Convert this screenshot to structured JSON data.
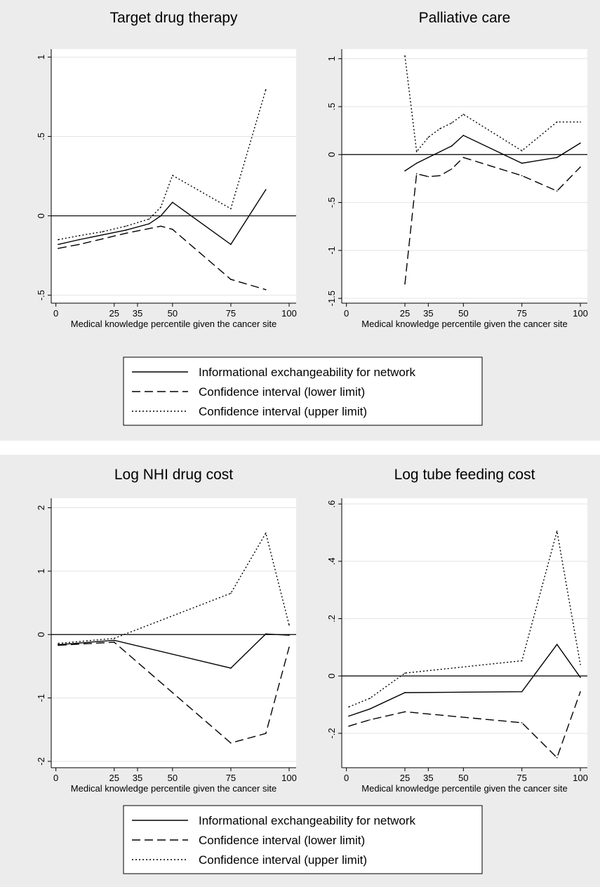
{
  "figures": [
    {
      "legend": {
        "entries": [
          {
            "label": "Informational exchangeability for network",
            "style": "solid"
          },
          {
            "label": "Confidence interval (lower limit)",
            "style": "dashed"
          },
          {
            "label": "Confidence interval (upper limit)",
            "style": "dotted"
          }
        ]
      }
    },
    {
      "legend": {
        "entries": [
          {
            "label": "Informational exchangeability for network",
            "style": "solid"
          },
          {
            "label": "Confidence interval (lower limit)",
            "style": "dashed"
          },
          {
            "label": "Confidence interval (upper limit)",
            "style": "dotted"
          }
        ]
      }
    }
  ],
  "chart_data": [
    {
      "type": "line",
      "title": "Target drug therapy",
      "xlabel": "Medical knowledge percentile given the cancer site",
      "ylabel": "",
      "xlim": [
        -2,
        103
      ],
      "ylim": [
        -0.55,
        1.05
      ],
      "xticks": [
        0,
        25,
        35,
        50,
        75,
        100
      ],
      "yticks": [
        -0.5,
        0,
        0.5,
        1
      ],
      "ytick_labels": [
        "-.5",
        "0",
        ".5",
        "1"
      ],
      "grid": true,
      "reference_line": 0,
      "series": [
        {
          "name": "Informational exchangeability for network",
          "style": "solid",
          "x": [
            1,
            10,
            20,
            30,
            40,
            45,
            50,
            75,
            90
          ],
          "y": [
            -0.18,
            -0.15,
            -0.12,
            -0.09,
            -0.05,
            0.0,
            0.085,
            -0.18,
            0.165
          ]
        },
        {
          "name": "Confidence interval (lower limit)",
          "style": "dashed",
          "x": [
            1,
            10,
            20,
            30,
            40,
            45,
            50,
            75,
            90
          ],
          "y": [
            -0.205,
            -0.18,
            -0.145,
            -0.11,
            -0.08,
            -0.065,
            -0.085,
            -0.4,
            -0.465
          ]
        },
        {
          "name": "Confidence interval (upper limit)",
          "style": "dotted",
          "x": [
            1,
            10,
            20,
            30,
            40,
            45,
            50,
            75,
            90
          ],
          "y": [
            -0.15,
            -0.125,
            -0.1,
            -0.065,
            -0.02,
            0.055,
            0.255,
            0.045,
            0.795
          ]
        }
      ]
    },
    {
      "type": "line",
      "title": "Palliative care",
      "xlabel": "Medical knowledge percentile given the cancer site",
      "ylabel": "",
      "xlim": [
        -2,
        103
      ],
      "ylim": [
        -1.55,
        1.1
      ],
      "xticks": [
        0,
        25,
        35,
        50,
        75,
        100
      ],
      "yticks": [
        -1.5,
        -1,
        -0.5,
        0,
        0.5,
        1
      ],
      "ytick_labels": [
        "-1.5",
        "-1",
        "-.5",
        "0",
        ".5",
        "1"
      ],
      "grid": true,
      "reference_line": 0,
      "series": [
        {
          "name": "Informational exchangeability for network",
          "style": "solid",
          "x": [
            25,
            30,
            35,
            40,
            45,
            50,
            75,
            90,
            100
          ],
          "y": [
            -0.17,
            -0.09,
            -0.03,
            0.03,
            0.09,
            0.2,
            -0.09,
            -0.03,
            0.12
          ]
        },
        {
          "name": "Confidence interval (lower limit)",
          "style": "dashed",
          "x": [
            25,
            30,
            35,
            40,
            45,
            50,
            75,
            90,
            100
          ],
          "y": [
            -1.35,
            -0.2,
            -0.23,
            -0.22,
            -0.15,
            -0.03,
            -0.22,
            -0.38,
            -0.13
          ]
        },
        {
          "name": "Confidence interval (upper limit)",
          "style": "dotted",
          "x": [
            25,
            30,
            35,
            40,
            45,
            50,
            75,
            90,
            100
          ],
          "y": [
            1.03,
            0.03,
            0.18,
            0.27,
            0.33,
            0.42,
            0.04,
            0.34,
            0.34
          ]
        }
      ]
    },
    {
      "type": "line",
      "title": "Log NHI drug cost",
      "xlabel": "Medical knowledge percentile given the cancer site",
      "ylabel": "",
      "xlim": [
        -2,
        103
      ],
      "ylim": [
        -2.1,
        2.15
      ],
      "xticks": [
        0,
        25,
        35,
        50,
        75,
        100
      ],
      "yticks": [
        -2,
        -1,
        0,
        1,
        2
      ],
      "ytick_labels": [
        "-2",
        "-1",
        "0",
        "1",
        "2"
      ],
      "grid": true,
      "reference_line": 0,
      "series": [
        {
          "name": "Informational exchangeability for network",
          "style": "solid",
          "x": [
            1,
            25,
            75,
            90,
            100
          ],
          "y": [
            -0.16,
            -0.09,
            -0.53,
            0.01,
            -0.01
          ]
        },
        {
          "name": "Confidence interval (lower limit)",
          "style": "dashed",
          "x": [
            1,
            25,
            75,
            90,
            100
          ],
          "y": [
            -0.17,
            -0.12,
            -1.71,
            -1.56,
            -0.2
          ]
        },
        {
          "name": "Confidence interval (upper limit)",
          "style": "dotted",
          "x": [
            1,
            25,
            75,
            90,
            100
          ],
          "y": [
            -0.14,
            -0.06,
            0.65,
            1.6,
            0.15
          ]
        }
      ]
    },
    {
      "type": "line",
      "title": "Log tube feeding cost",
      "xlabel": "Medical knowledge percentile given the cancer site",
      "ylabel": "",
      "xlim": [
        -2,
        103
      ],
      "ylim": [
        -0.32,
        0.62
      ],
      "xticks": [
        0,
        25,
        35,
        50,
        75,
        100
      ],
      "yticks": [
        -0.2,
        0,
        0.2,
        0.4,
        0.6
      ],
      "ytick_labels": [
        "-.2",
        "0",
        ".2",
        ".4",
        ".6"
      ],
      "grid": true,
      "reference_line": 0,
      "series": [
        {
          "name": "Informational exchangeability for network",
          "style": "solid",
          "x": [
            1,
            10,
            25,
            75,
            90,
            100
          ],
          "y": [
            -0.14,
            -0.115,
            -0.058,
            -0.055,
            0.11,
            -0.005
          ]
        },
        {
          "name": "Confidence interval (lower limit)",
          "style": "dashed",
          "x": [
            1,
            10,
            25,
            75,
            90,
            100
          ],
          "y": [
            -0.175,
            -0.153,
            -0.125,
            -0.163,
            -0.285,
            -0.055
          ]
        },
        {
          "name": "Confidence interval (upper limit)",
          "style": "dotted",
          "x": [
            1,
            10,
            25,
            75,
            90,
            100
          ],
          "y": [
            -0.108,
            -0.078,
            0.01,
            0.053,
            0.505,
            0.04
          ]
        }
      ]
    }
  ]
}
